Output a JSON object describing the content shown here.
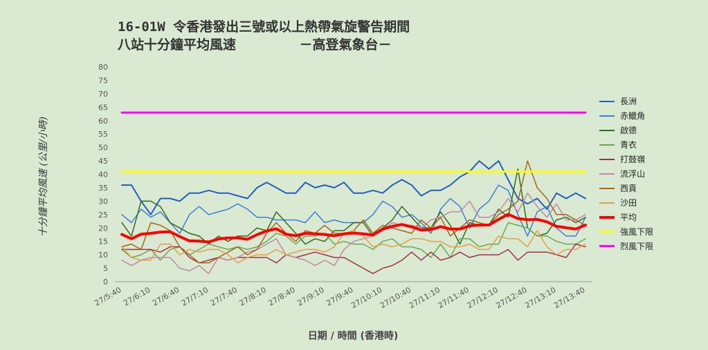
{
  "title": {
    "line1": "16-01W 令香港發出三號或以上熱帶氣旋警告期間",
    "line2": "八站十分鐘平均風速        －高登氣象台－"
  },
  "chart_data": {
    "type": "line",
    "xlabel": "日期 / 時間 (香港時)",
    "ylabel": "十分鐘平均風速 (公里/小時)",
    "ylim": [
      0,
      80
    ],
    "yticks": [
      0,
      5,
      10,
      15,
      20,
      25,
      30,
      35,
      40,
      45,
      50,
      55,
      60,
      65,
      70,
      75,
      80
    ],
    "grid": false,
    "legend": "right",
    "x": [
      "27/5:40",
      "27/5:50",
      "27/6:00",
      "27/6:10",
      "27/6:20",
      "27/6:30",
      "27/6:40",
      "27/6:50",
      "27/7:00",
      "27/7:10",
      "27/7:20",
      "27/7:30",
      "27/7:40",
      "27/7:50",
      "27/8:00",
      "27/8:10",
      "27/8:20",
      "27/8:30",
      "27/8:40",
      "27/8:50",
      "27/9:00",
      "27/9:10",
      "27/9:20",
      "27/9:30",
      "27/9:40",
      "27/9:50",
      "27/10:00",
      "27/10:10",
      "27/10:20",
      "27/10:30",
      "27/10:40",
      "27/10:50",
      "27/11:00",
      "27/11:10",
      "27/11:20",
      "27/11:30",
      "27/11:40",
      "27/11:50",
      "27/12:00",
      "27/12:10",
      "27/12:20",
      "27/12:30",
      "27/12:40",
      "27/12:50",
      "27/13:00",
      "27/13:10",
      "27/13:20",
      "27/13:30",
      "27/13:40"
    ],
    "xtick_labels": [
      "27/5:40",
      "27/6:10",
      "27/6:40",
      "27/7:10",
      "27/7:40",
      "27/8:10",
      "27/8:40",
      "27/9:10",
      "27/9:40",
      "27/10:10",
      "27/10:40",
      "27/11:10",
      "27/11:40",
      "27/12:10",
      "27/12:40",
      "27/13:10",
      "27/13:40"
    ],
    "series": [
      {
        "name": "長洲",
        "color": "#1f5fbf",
        "width": 2,
        "values": [
          36,
          36,
          30,
          25,
          31,
          31,
          30,
          33,
          33,
          34,
          33,
          33,
          32,
          31,
          35,
          37,
          35,
          33,
          33,
          37,
          35,
          36,
          35,
          37,
          33,
          33,
          34,
          33,
          36,
          38,
          36,
          32,
          34,
          34,
          36,
          39,
          41,
          45,
          42,
          45,
          38,
          31,
          29,
          31,
          27,
          33,
          31,
          33,
          31
        ]
      },
      {
        "name": "赤鱲角",
        "color": "#3a7fd8",
        "width": 1.5,
        "values": [
          25,
          22,
          27,
          24,
          26,
          22,
          18,
          25,
          28,
          25,
          26,
          27,
          29,
          27,
          24,
          24,
          23,
          23,
          23,
          22,
          26,
          22,
          23,
          22,
          22,
          22,
          25,
          30,
          28,
          24,
          25,
          22,
          18,
          27,
          31,
          28,
          20,
          27,
          30,
          36,
          34,
          25,
          17,
          26,
          28,
          20,
          17,
          17,
          24
        ]
      },
      {
        "name": "啟德",
        "color": "#2f6b1f",
        "width": 1.5,
        "values": [
          22,
          17,
          30,
          30,
          28,
          22,
          20,
          18,
          17,
          14,
          17,
          15,
          17,
          17,
          20,
          19,
          26,
          22,
          18,
          14,
          16,
          15,
          19,
          19,
          22,
          22,
          17,
          20,
          23,
          28,
          24,
          20,
          20,
          26,
          21,
          14,
          22,
          21,
          21,
          27,
          24,
          42,
          20,
          17,
          18,
          23,
          24,
          22,
          24
        ]
      },
      {
        "name": "青衣",
        "color": "#6aa84f",
        "width": 1.5,
        "values": [
          12,
          9,
          10,
          12,
          8,
          12,
          13,
          10,
          12,
          14,
          13,
          12,
          13,
          12,
          13,
          15,
          18,
          17,
          14,
          17,
          17,
          18,
          14,
          15,
          14,
          14,
          12,
          15,
          16,
          13,
          13,
          12,
          9,
          14,
          9,
          16,
          16,
          13,
          14,
          14,
          22,
          21,
          20,
          17,
          17,
          15,
          14,
          14,
          16
        ]
      },
      {
        "name": "打鼓嶺",
        "color": "#a0304a",
        "width": 1.5,
        "values": [
          12,
          12,
          12,
          12,
          11,
          13,
          13,
          9,
          7,
          8,
          9,
          8,
          9,
          9,
          9,
          9,
          7,
          10,
          9,
          10,
          11,
          10,
          9,
          9,
          7,
          5,
          3,
          5,
          6,
          8,
          11,
          8,
          11,
          8,
          9,
          11,
          9,
          10,
          10,
          10,
          12,
          8,
          11,
          11,
          11,
          10,
          9,
          14,
          13
        ]
      },
      {
        "name": "流浮山",
        "color": "#c586a4",
        "width": 1.5,
        "values": [
          8,
          6,
          8,
          9,
          9,
          9,
          5,
          4,
          6,
          3,
          9,
          8,
          9,
          11,
          12,
          14,
          16,
          10,
          9,
          8,
          6,
          8,
          6,
          12,
          15,
          16,
          17,
          19,
          22,
          21,
          21,
          20,
          23,
          24,
          26,
          26,
          30,
          24,
          24,
          26,
          31,
          26,
          33,
          28,
          24,
          29,
          23,
          23,
          25
        ]
      },
      {
        "name": "西貢",
        "color": "#a5651a",
        "width": 1.5,
        "values": [
          13,
          14,
          12,
          22,
          21,
          19,
          13,
          10,
          7,
          7,
          9,
          11,
          13,
          10,
          12,
          18,
          22,
          18,
          15,
          19,
          18,
          21,
          18,
          18,
          19,
          23,
          18,
          21,
          20,
          19,
          18,
          23,
          20,
          24,
          17,
          20,
          23,
          22,
          21,
          25,
          27,
          30,
          45,
          35,
          31,
          25,
          25,
          23,
          21
        ]
      },
      {
        "name": "沙田",
        "color": "#e69d45",
        "width": 1.5,
        "values": [
          13,
          9,
          8,
          8,
          14,
          14,
          10,
          12,
          11,
          12,
          12,
          10,
          7,
          9,
          10,
          10,
          12,
          10,
          11,
          12,
          12,
          11,
          13,
          18,
          19,
          17,
          13,
          14,
          13,
          14,
          16,
          16,
          15,
          15,
          13,
          13,
          14,
          12,
          12,
          17,
          16,
          16,
          13,
          19,
          13,
          10,
          12,
          12,
          14
        ]
      },
      {
        "name": "平均",
        "color": "#ff0000",
        "width": 4,
        "values": [
          17.6,
          16,
          17.7,
          18,
          18.5,
          18.6,
          16.8,
          15.2,
          15.1,
          14.8,
          15.9,
          16.3,
          16.3,
          15.8,
          17.5,
          18.9,
          19.7,
          17.7,
          17.1,
          18,
          17.8,
          17.6,
          17.1,
          17.8,
          18.1,
          17.8,
          17.4,
          19.6,
          20.6,
          21.3,
          20.4,
          19.2,
          19.4,
          20.5,
          19.6,
          19.6,
          20.8,
          21.1,
          21.1,
          23.2,
          25.1,
          23.5,
          23.1,
          23.2,
          22.3,
          20.6,
          20.1,
          19.6,
          21.1
        ]
      },
      {
        "name": "強風下限",
        "color": "#ffff00",
        "width": 3,
        "values": [
          41,
          41,
          41,
          41,
          41,
          41,
          41,
          41,
          41,
          41,
          41,
          41,
          41,
          41,
          41,
          41,
          41,
          41,
          41,
          41,
          41,
          41,
          41,
          41,
          41,
          41,
          41,
          41,
          41,
          41,
          41,
          41,
          41,
          41,
          41,
          41,
          41,
          41,
          41,
          41,
          41,
          41,
          41,
          41,
          41,
          41,
          41,
          41,
          41
        ]
      },
      {
        "name": "烈風下限",
        "color": "#ff00ff",
        "width": 3,
        "values": [
          63,
          63,
          63,
          63,
          63,
          63,
          63,
          63,
          63,
          63,
          63,
          63,
          63,
          63,
          63,
          63,
          63,
          63,
          63,
          63,
          63,
          63,
          63,
          63,
          63,
          63,
          63,
          63,
          63,
          63,
          63,
          63,
          63,
          63,
          63,
          63,
          63,
          63,
          63,
          63,
          63,
          63,
          63,
          63,
          63,
          63,
          63,
          63,
          63
        ]
      }
    ]
  }
}
